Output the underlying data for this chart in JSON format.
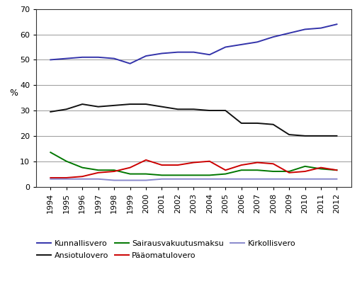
{
  "years": [
    1994,
    1995,
    1996,
    1997,
    1998,
    1999,
    2000,
    2001,
    2002,
    2003,
    2004,
    2005,
    2006,
    2007,
    2008,
    2009,
    2010,
    2011,
    2012
  ],
  "kunnallisvero": [
    50.0,
    50.5,
    51.0,
    51.0,
    50.5,
    48.5,
    51.5,
    52.5,
    53.0,
    53.0,
    52.0,
    55.0,
    56.0,
    57.0,
    59.0,
    60.5,
    62.0,
    62.5,
    64.0
  ],
  "ansiotulovero": [
    29.5,
    30.5,
    32.5,
    31.5,
    32.0,
    32.5,
    32.5,
    31.5,
    30.5,
    30.5,
    30.0,
    30.0,
    25.0,
    25.0,
    24.5,
    20.5,
    20.0,
    20.0,
    20.0
  ],
  "sairausvakuutusmaksu": [
    13.5,
    10.0,
    7.5,
    6.5,
    6.5,
    5.0,
    5.0,
    4.5,
    4.5,
    4.5,
    4.5,
    5.0,
    6.5,
    6.5,
    6.0,
    6.0,
    8.0,
    7.0,
    6.5
  ],
  "paaomatulovero": [
    3.5,
    3.5,
    4.0,
    5.5,
    6.0,
    7.5,
    10.5,
    8.5,
    8.5,
    9.5,
    10.0,
    6.5,
    8.5,
    9.5,
    9.0,
    5.5,
    6.0,
    7.5,
    6.5
  ],
  "kirkollisvero": [
    3.0,
    3.0,
    3.0,
    3.0,
    2.5,
    2.5,
    2.5,
    3.0,
    3.0,
    3.0,
    3.0,
    3.0,
    3.0,
    3.0,
    3.0,
    3.0,
    3.0,
    3.0,
    3.0
  ],
  "kunnallisvero_color": "#3333aa",
  "ansiotulovero_color": "#111111",
  "sairausvakuutusmaksu_color": "#007700",
  "paaomatulovero_color": "#cc0000",
  "kirkollisvero_color": "#8888cc",
  "ylabel": "%",
  "ylim": [
    0,
    70
  ],
  "yticks": [
    0,
    10,
    20,
    30,
    40,
    50,
    60,
    70
  ],
  "legend_kunnallisvero": "Kunnallisvero",
  "legend_ansiotulovero": "Ansiotulovero",
  "legend_sairausvakuutusmaksu": "Sairausvakuutusmaksu",
  "legend_paaomatulovero": "Pääomatulovero",
  "legend_kirkollisvero": "Kirkollisvero",
  "background_color": "#ffffff",
  "grid_color": "#999999",
  "linewidth": 1.4,
  "tick_fontsize": 8,
  "legend_fontsize": 8
}
